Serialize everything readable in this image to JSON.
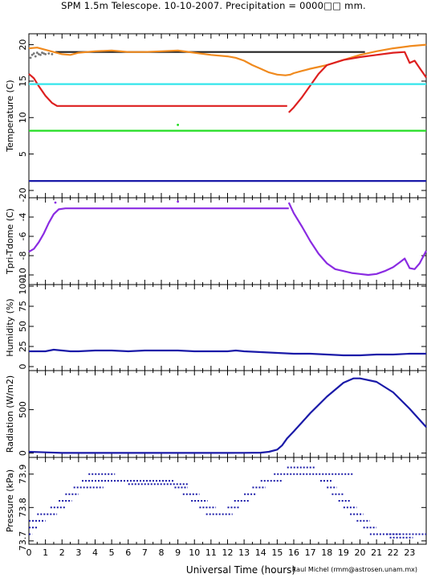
{
  "title": "SPM 1.5m Telescope. 10-10-2007. Precipitation = 0000□□ mm.",
  "credit": "Raul Michel (rmm@astrosen.unam.mx)",
  "xlabel": "Universal Time (hours)",
  "colors": {
    "black": "#222222",
    "orange": "#f08a1e",
    "red": "#dd1f1f",
    "cyan": "#34e6ec",
    "green": "#22dd22",
    "blue": "#1a1aa8",
    "purple": "#8a2be2",
    "gray": "#777777"
  },
  "chart_data": [
    {
      "type": "line",
      "ylabel": "Temperature (C)",
      "xlim": [
        0,
        24
      ],
      "ylim": [
        -1,
        21.5
      ],
      "yticks": [
        0,
        5,
        10,
        15,
        20
      ],
      "series": [
        {
          "color": "black",
          "x": [
            1.6,
            20.3
          ],
          "y": [
            19.0,
            19.0
          ]
        },
        {
          "color": "orange",
          "x": [
            0,
            0.5,
            1,
            1.5,
            2,
            2.5,
            3,
            4,
            5,
            6,
            7,
            8,
            9,
            10,
            11,
            12,
            12.5,
            13,
            13.5,
            14,
            14.5,
            15,
            15.5,
            15.8,
            16,
            16.5,
            17,
            18,
            19,
            20,
            21,
            22,
            23,
            23.5,
            24
          ],
          "y": [
            19.5,
            19.6,
            19.3,
            19.0,
            18.7,
            18.6,
            18.9,
            19.1,
            19.2,
            19.0,
            19.0,
            19.1,
            19.2,
            18.9,
            18.6,
            18.4,
            18.2,
            17.8,
            17.2,
            16.7,
            16.2,
            15.9,
            15.8,
            15.9,
            16.1,
            16.4,
            16.7,
            17.2,
            17.9,
            18.6,
            19.1,
            19.5,
            19.8,
            19.9,
            20.0
          ]
        },
        {
          "color": "red",
          "x": [
            0,
            0.3,
            0.6,
            1.0,
            1.4,
            1.7,
            2.0,
            15.6
          ],
          "y": [
            16.0,
            15.4,
            14.3,
            13.0,
            12.0,
            11.6,
            11.6,
            11.6
          ]
        },
        {
          "color": "red",
          "x": [
            15.7,
            16.0,
            16.5,
            17.0,
            17.5,
            18.0,
            19.0,
            20.0,
            21.0,
            22.0,
            22.7,
            23.0,
            23.3,
            23.6,
            24
          ],
          "y": [
            10.7,
            11.4,
            12.8,
            14.4,
            16.0,
            17.2,
            17.9,
            18.3,
            18.6,
            18.9,
            19.0,
            17.5,
            17.8,
            16.8,
            15.5
          ]
        },
        {
          "color": "cyan",
          "x": [
            0,
            24
          ],
          "y": [
            14.6,
            14.6
          ]
        },
        {
          "color": "green",
          "x": [
            0,
            24
          ],
          "y": [
            8.2,
            8.2
          ]
        },
        {
          "color": "blue",
          "x": [
            0,
            24
          ],
          "y": [
            1.3,
            1.3
          ]
        }
      ],
      "points": [
        {
          "color": "gray",
          "x": [
            0.1,
            0.2,
            0.3,
            0.4,
            0.5,
            0.6,
            0.7,
            0.8,
            0.9,
            1.0,
            1.2,
            1.4
          ],
          "y": [
            18.2,
            18.6,
            18.8,
            18.4,
            18.9,
            18.7,
            18.6,
            18.9,
            18.8,
            18.7,
            18.8,
            18.7
          ]
        },
        {
          "color": "green",
          "x": [
            9.0
          ],
          "y": [
            9.0
          ]
        }
      ]
    },
    {
      "type": "line",
      "ylabel": "Tpri-Tdome (C)",
      "xlim": [
        0,
        24
      ],
      "ylim": [
        -11,
        -2
      ],
      "yticks": [
        -2,
        -4,
        -6,
        -8,
        -10
      ],
      "series": [
        {
          "color": "purple",
          "x": [
            0,
            0.3,
            0.6,
            0.9,
            1.2,
            1.5,
            1.8,
            2.2,
            15.7
          ],
          "y": [
            -7.6,
            -7.3,
            -6.6,
            -5.7,
            -4.6,
            -3.7,
            -3.2,
            -3.1,
            -3.1
          ]
        },
        {
          "color": "purple",
          "x": [
            15.7,
            16.0,
            16.5,
            17.0,
            17.5,
            18.0,
            18.5,
            19.0,
            19.5,
            20.0,
            20.5,
            21.0,
            21.5,
            22.0,
            22.4,
            22.7,
            23.0,
            23.3,
            23.6,
            24
          ],
          "y": [
            -2.5,
            -3.6,
            -5.0,
            -6.5,
            -7.8,
            -8.8,
            -9.4,
            -9.6,
            -9.8,
            -9.9,
            -10.0,
            -9.9,
            -9.6,
            -9.2,
            -8.7,
            -8.3,
            -9.3,
            -9.4,
            -8.8,
            -7.5
          ]
        }
      ],
      "points": [
        {
          "color": "purple",
          "x": [
            1.6,
            9.0
          ],
          "y": [
            -2.5,
            -2.4
          ]
        }
      ]
    },
    {
      "type": "line",
      "ylabel": "Humidity (%)",
      "xlim": [
        0,
        24
      ],
      "ylim": [
        -5,
        102
      ],
      "yticks": [
        0,
        25,
        50,
        75,
        100
      ],
      "series": [
        {
          "color": "blue",
          "x": [
            0,
            1,
            1.5,
            2,
            2.5,
            3,
            4,
            5,
            6,
            7,
            8,
            9,
            10,
            11,
            12,
            12.5,
            13,
            14,
            15,
            16,
            17,
            18,
            19,
            20,
            21,
            22,
            23,
            24
          ],
          "y": [
            19,
            19,
            21,
            20,
            19,
            19,
            20,
            20,
            19,
            20,
            20,
            20,
            19,
            19,
            19,
            20,
            19,
            18,
            17,
            16,
            16,
            15,
            14,
            14,
            15,
            15,
            16,
            16
          ]
        }
      ]
    },
    {
      "type": "line",
      "ylabel": "Radiation (W/m2)",
      "xlim": [
        0,
        24
      ],
      "ylim": [
        -50,
        950
      ],
      "yticks": [
        0,
        500
      ],
      "series": [
        {
          "color": "blue",
          "x": [
            0,
            0.5,
            1.0,
            2,
            4,
            6,
            8,
            10,
            12,
            13,
            14,
            14.5,
            15.0,
            15.3,
            15.6,
            16,
            17,
            18,
            19,
            19.6,
            20,
            21,
            22,
            23,
            24
          ],
          "y": [
            15,
            12,
            8,
            2,
            2,
            2,
            2,
            2,
            2,
            3,
            5,
            15,
            40,
            90,
            170,
            250,
            460,
            650,
            810,
            860,
            860,
            820,
            700,
            510,
            300
          ]
        }
      ]
    },
    {
      "type": "scatter",
      "ylabel": "Pressure (kPa)",
      "xlim": [
        0,
        24
      ],
      "ylim": [
        73.69,
        73.95
      ],
      "yticks": [
        73.7,
        73.8,
        73.9
      ],
      "steps": [
        {
          "x0": 0.0,
          "x1": 0.5,
          "y": 73.74
        },
        {
          "x0": 0.0,
          "x1": 0.2,
          "y": 73.72
        },
        {
          "x0": 0.0,
          "x1": 1.0,
          "y": 73.76
        },
        {
          "x0": 0.5,
          "x1": 1.7,
          "y": 73.78
        },
        {
          "x0": 1.3,
          "x1": 2.2,
          "y": 73.8
        },
        {
          "x0": 1.8,
          "x1": 2.6,
          "y": 73.82
        },
        {
          "x0": 2.2,
          "x1": 3.0,
          "y": 73.84
        },
        {
          "x0": 2.7,
          "x1": 4.5,
          "y": 73.86
        },
        {
          "x0": 3.2,
          "x1": 8.8,
          "y": 73.88
        },
        {
          "x0": 3.6,
          "x1": 5.2,
          "y": 73.9
        },
        {
          "x0": 6.0,
          "x1": 9.6,
          "y": 73.87
        },
        {
          "x0": 8.8,
          "x1": 9.6,
          "y": 73.86
        },
        {
          "x0": 9.3,
          "x1": 10.3,
          "y": 73.84
        },
        {
          "x0": 9.8,
          "x1": 10.8,
          "y": 73.82
        },
        {
          "x0": 10.3,
          "x1": 11.3,
          "y": 73.8
        },
        {
          "x0": 10.7,
          "x1": 12.3,
          "y": 73.78
        },
        {
          "x0": 12.0,
          "x1": 12.7,
          "y": 73.8
        },
        {
          "x0": 12.4,
          "x1": 13.3,
          "y": 73.82
        },
        {
          "x0": 13.0,
          "x1": 13.7,
          "y": 73.84
        },
        {
          "x0": 13.5,
          "x1": 14.3,
          "y": 73.86
        },
        {
          "x0": 14.0,
          "x1": 15.3,
          "y": 73.88
        },
        {
          "x0": 14.8,
          "x1": 19.6,
          "y": 73.9
        },
        {
          "x0": 15.6,
          "x1": 17.3,
          "y": 73.92
        },
        {
          "x0": 17.6,
          "x1": 18.3,
          "y": 73.88
        },
        {
          "x0": 18.0,
          "x1": 18.6,
          "y": 73.86
        },
        {
          "x0": 18.3,
          "x1": 19.0,
          "y": 73.84
        },
        {
          "x0": 18.7,
          "x1": 19.4,
          "y": 73.82
        },
        {
          "x0": 19.0,
          "x1": 19.8,
          "y": 73.8
        },
        {
          "x0": 19.4,
          "x1": 20.2,
          "y": 73.78
        },
        {
          "x0": 19.8,
          "x1": 20.6,
          "y": 73.76
        },
        {
          "x0": 20.2,
          "x1": 21.0,
          "y": 73.74
        },
        {
          "x0": 20.6,
          "x1": 22.4,
          "y": 73.72
        },
        {
          "x0": 21.6,
          "x1": 24.0,
          "y": 73.72
        },
        {
          "x0": 21.8,
          "x1": 23.2,
          "y": 73.71
        }
      ]
    }
  ],
  "xticks": [
    0,
    1,
    2,
    3,
    4,
    5,
    6,
    7,
    8,
    9,
    10,
    11,
    12,
    13,
    14,
    15,
    16,
    17,
    18,
    19,
    20,
    21,
    22,
    23
  ]
}
